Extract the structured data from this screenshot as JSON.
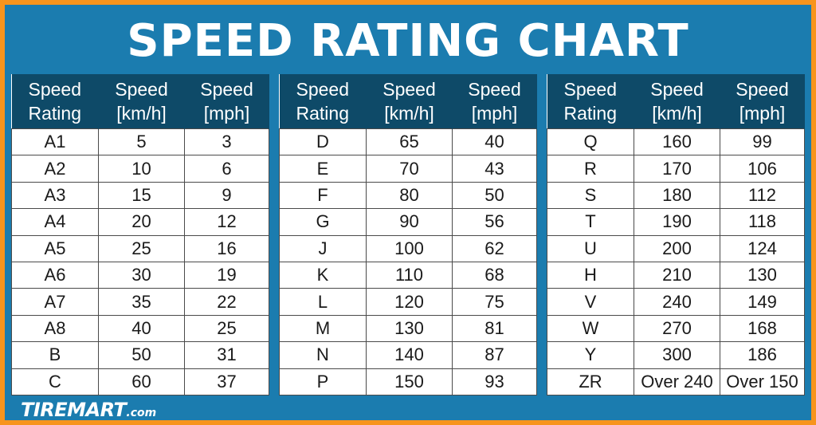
{
  "title": "SPEED RATING CHART",
  "headers": {
    "c1_line1": "Speed",
    "c1_line2": "Rating",
    "c2_line1": "Speed",
    "c2_line2": "[km/h]",
    "c3_line1": "Speed",
    "c3_line2": "[mph]"
  },
  "tables": [
    {
      "rows": [
        [
          "A1",
          "5",
          "3"
        ],
        [
          "A2",
          "10",
          "6"
        ],
        [
          "A3",
          "15",
          "9"
        ],
        [
          "A4",
          "20",
          "12"
        ],
        [
          "A5",
          "25",
          "16"
        ],
        [
          "A6",
          "30",
          "19"
        ],
        [
          "A7",
          "35",
          "22"
        ],
        [
          "A8",
          "40",
          "25"
        ],
        [
          "B",
          "50",
          "31"
        ],
        [
          "C",
          "60",
          "37"
        ]
      ]
    },
    {
      "rows": [
        [
          "D",
          "65",
          "40"
        ],
        [
          "E",
          "70",
          "43"
        ],
        [
          "F",
          "80",
          "50"
        ],
        [
          "G",
          "90",
          "56"
        ],
        [
          "J",
          "100",
          "62"
        ],
        [
          "K",
          "110",
          "68"
        ],
        [
          "L",
          "120",
          "75"
        ],
        [
          "M",
          "130",
          "81"
        ],
        [
          "N",
          "140",
          "87"
        ],
        [
          "P",
          "150",
          "93"
        ]
      ]
    },
    {
      "rows": [
        [
          "Q",
          "160",
          "99"
        ],
        [
          "R",
          "170",
          "106"
        ],
        [
          "S",
          "180",
          "112"
        ],
        [
          "T",
          "190",
          "118"
        ],
        [
          "U",
          "200",
          "124"
        ],
        [
          "H",
          "210",
          "130"
        ],
        [
          "V",
          "240",
          "149"
        ],
        [
          "W",
          "270",
          "168"
        ],
        [
          "Y",
          "300",
          "186"
        ],
        [
          "ZR",
          "Over 240",
          "Over 150"
        ]
      ]
    }
  ],
  "logo": {
    "brand": "TIREMART",
    "domain": ".com"
  },
  "colors": {
    "border": "#f7941d",
    "background": "#1b7caf",
    "header_bg": "#0e4a68",
    "cell_bg": "#ffffff"
  }
}
